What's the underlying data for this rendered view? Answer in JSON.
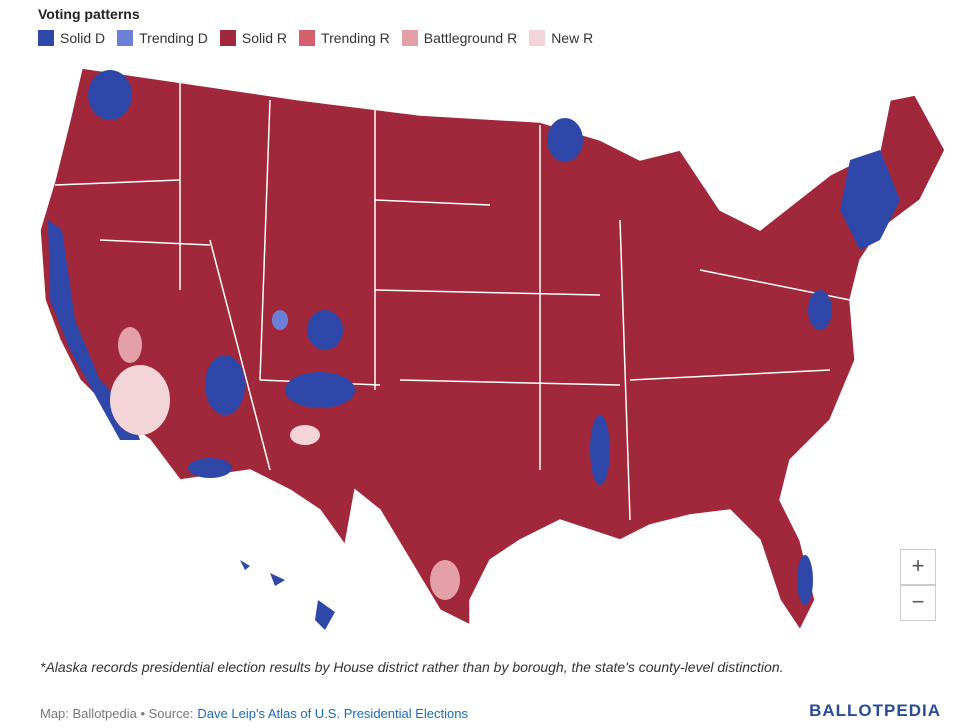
{
  "legend": {
    "title": "Voting patterns",
    "items": [
      {
        "name": "Solid D",
        "color": "#2e47a8"
      },
      {
        "name": "Trending D",
        "color": "#6b7fd7"
      },
      {
        "name": "Solid R",
        "color": "#a1283b"
      },
      {
        "name": "Trending R",
        "color": "#d2606d"
      },
      {
        "name": "Battleground R",
        "color": "#e3a1a7"
      },
      {
        "name": "New R",
        "color": "#f3d4d8"
      }
    ]
  },
  "zoom": {
    "in": "+",
    "out": "−"
  },
  "footnote": "*Alaska records presidential election results by House district rather than by borough, the state's county-level distinction.",
  "attribution": "Map: Ballotpedia • Source:",
  "source_link": "Dave Leip's Atlas of U.S. Presidential Elections",
  "logo": "BALLOTPEDIA"
}
